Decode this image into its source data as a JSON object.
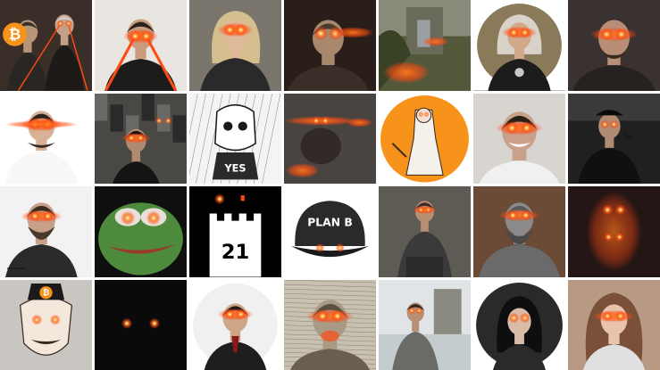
{
  "collage": {
    "tiles": [
      {
        "bg": "#1a1a1a",
        "style": "gothic-couple",
        "logo": "bitcoin"
      },
      {
        "bg": "#e9e6e2",
        "style": "man-laser"
      },
      {
        "bg": "#6d6a63",
        "style": "woman-blonde"
      },
      {
        "bg": "#1f1a18",
        "style": "man-dark"
      },
      {
        "bg": "#5b5f3a",
        "style": "ruins"
      },
      {
        "bg": "#8a7a5a",
        "style": "woman-old-circle"
      },
      {
        "bg": "#4a4240",
        "style": "bald-man"
      },
      {
        "bg": "#ffffff",
        "style": "man-white"
      },
      {
        "bg": "#2b2b2b",
        "style": "graffiti-woman"
      },
      {
        "bg": "#f4f4f4",
        "style": "sketch-skull",
        "label": "YES"
      },
      {
        "bg": "#3a3634",
        "style": "blurry-lights"
      },
      {
        "bg": "#f28a2e",
        "style": "cartoon-circle"
      },
      {
        "bg": "#d8d4d0",
        "style": "smiling-man"
      },
      {
        "bg": "#1c1c1c",
        "style": "mic-man"
      },
      {
        "bg": "#f2f2f2",
        "style": "beard-man"
      },
      {
        "bg": "#0f0f0f",
        "style": "pepe"
      },
      {
        "bg": "#000000",
        "style": "castle-21",
        "label": "21"
      },
      {
        "bg": "#ffffff",
        "style": "cap",
        "label": "PLAN B"
      },
      {
        "bg": "#5e5a54",
        "style": "sitting-man"
      },
      {
        "bg": "#6b4a36",
        "style": "statue-man"
      },
      {
        "bg": "#241615",
        "style": "dark-glow"
      },
      {
        "bg": "#c9c5c0",
        "style": "anon-mask",
        "logo": "bitcoin"
      },
      {
        "bg": "#0a0a0a",
        "style": "eyes-only"
      },
      {
        "bg": "#ffffff",
        "style": "suit-man-circle"
      },
      {
        "bg": "#c8c0b0",
        "style": "etching"
      },
      {
        "bg": "#bfc6c8",
        "style": "standing-man"
      },
      {
        "bg": "#303030",
        "style": "woman-circle"
      },
      {
        "bg": "#c7a48c",
        "style": "woman-selfie"
      }
    ]
  },
  "colors": {
    "laser": "#ff4a12",
    "glow": "#ff7a1a",
    "bitcoin": "#f7931a"
  }
}
